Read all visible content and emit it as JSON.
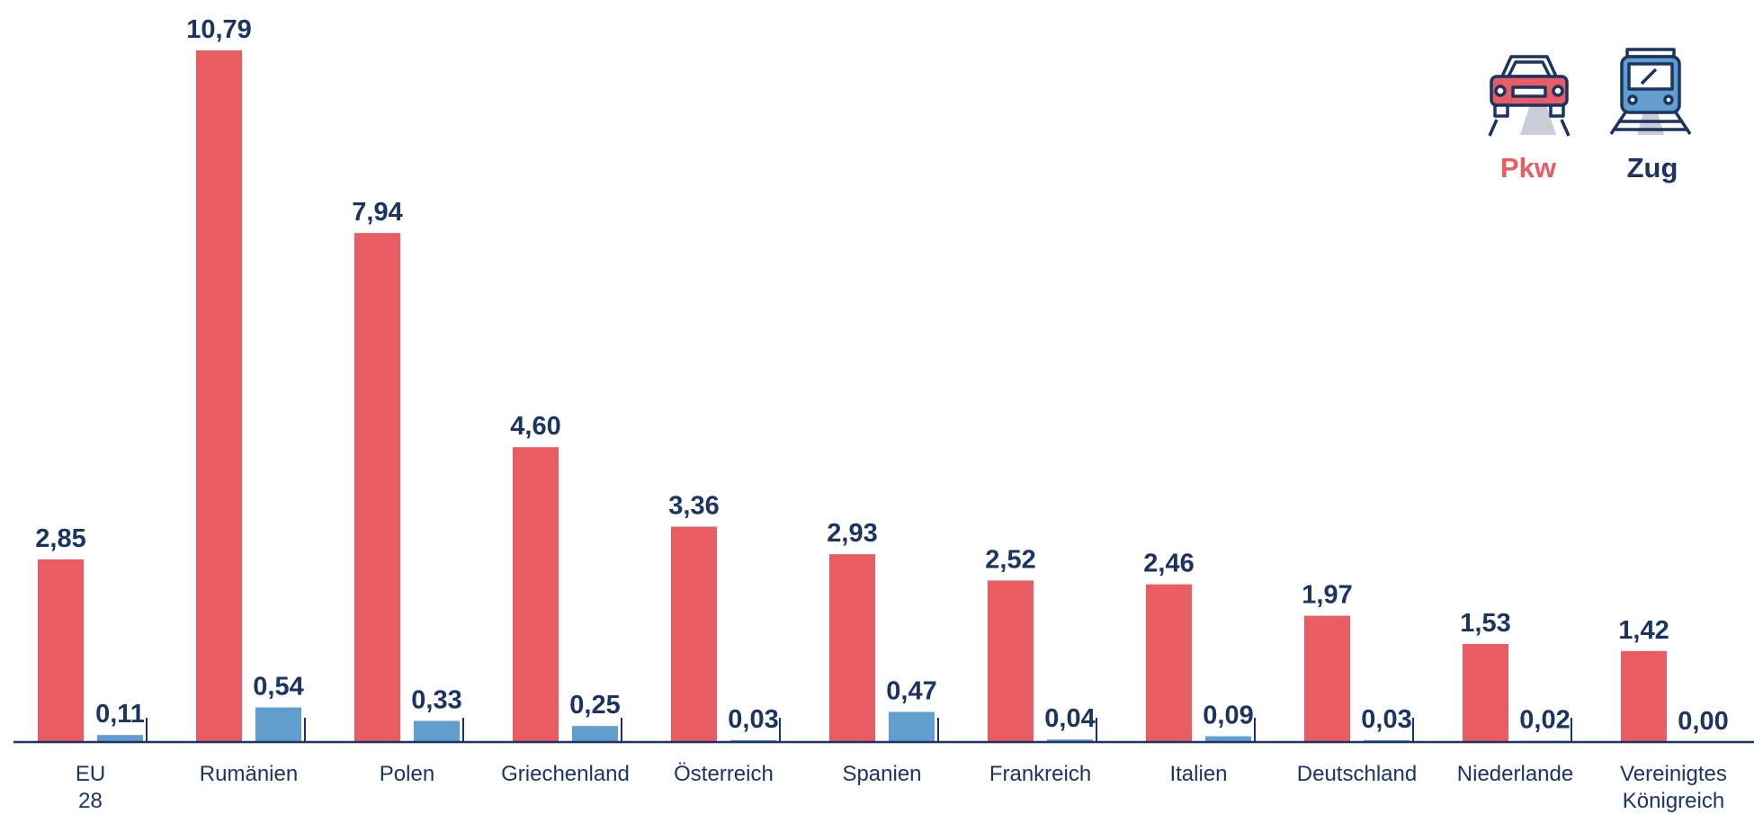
{
  "chart_data": {
    "type": "bar",
    "categories": [
      "EU 28",
      "Rumänien",
      "Polen",
      "Griechenland",
      "Österreich",
      "Spanien",
      "Frankreich",
      "Italien",
      "Deutschland",
      "Niederlande",
      "Vereinigtes Königreich"
    ],
    "series": [
      {
        "name": "Pkw",
        "color": "#e85c62",
        "values": [
          2.85,
          10.79,
          7.94,
          4.6,
          3.36,
          2.93,
          2.52,
          2.46,
          1.97,
          1.53,
          1.42
        ],
        "value_labels": [
          "2,85",
          "10,79",
          "7,94",
          "4,60",
          "3,36",
          "2,93",
          "2,52",
          "2,46",
          "1,97",
          "1,53",
          "1,42"
        ]
      },
      {
        "name": "Zug",
        "color": "#5f9ecf",
        "values": [
          0.11,
          0.54,
          0.33,
          0.25,
          0.03,
          0.47,
          0.04,
          0.09,
          0.03,
          0.02,
          0.0
        ],
        "value_labels": [
          "0,11",
          "0,54",
          "0,33",
          "0,25",
          "0,03",
          "0,47",
          "0,04",
          "0,09",
          "0,03",
          "0,02",
          "0,00"
        ]
      }
    ],
    "legend": "top-right"
  }
}
